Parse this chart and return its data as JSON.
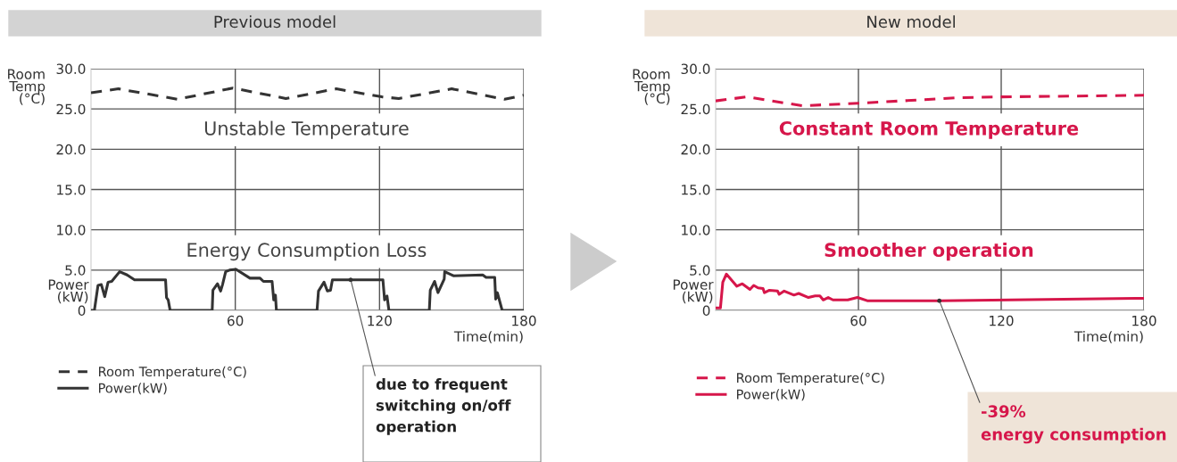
{
  "chart_data": [
    {
      "type": "line",
      "title": "Previous model",
      "ylabel": "Room\nTemp\n(°C)",
      "xlabel": "Time(min)",
      "xlim": [
        0,
        180
      ],
      "xticks": [
        60,
        120,
        180
      ],
      "ylim": [
        0,
        30
      ],
      "yticks": [
        0,
        {
          "value": 5,
          "label": "5.0"
        },
        {
          "value": 10,
          "label": "10.0"
        },
        {
          "value": 15,
          "label": "15.0"
        },
        {
          "value": 20,
          "label": "20.0"
        },
        {
          "value": 25,
          "label": "25.0"
        },
        {
          "value": 30,
          "label": "30.0"
        }
      ],
      "grid": true,
      "legend": "bottom left",
      "marker": "none",
      "series": [
        {
          "name": "Room Temperature(°C)",
          "color": "#333333",
          "line_style": "dashed",
          "x": [
            0,
            11.4,
            36,
            59,
            81,
            102,
            121,
            128,
            150,
            172,
            180
          ],
          "values": [
            27.0,
            27.5,
            26.2,
            27.6,
            26.3,
            27.5,
            26.5,
            26.3,
            27.5,
            26.2,
            26.7
          ]
        },
        {
          "name": "Power(kW)",
          "color": "#333333",
          "line_style": "solid",
          "x": [
            0,
            1.4,
            2.9,
            4.3,
            5.7,
            7.1,
            8.6,
            11.9,
            15,
            18.1,
            31,
            31.4,
            32.1,
            32.9,
            50.4,
            50.7,
            52.6,
            53.9,
            54.7,
            56,
            57.6,
            60.3,
            66.1,
            70.3,
            71.7,
            75.3,
            76,
            76.7,
            77.1,
            94,
            94.6,
            96.9,
            98.3,
            99.6,
            100.4,
            121.4,
            122.1,
            123.1,
            123.9,
            140.7,
            141.1,
            142.9,
            144.3,
            146.9,
            147.1,
            150.7,
            162.9,
            164.3,
            167.9,
            168.3,
            169,
            171,
            180
          ],
          "values": [
            0,
            0,
            3.1,
            3.2,
            1.7,
            3.5,
            3.6,
            4.8,
            4.4,
            3.8,
            3.8,
            1.6,
            1.3,
            0,
            0,
            2.5,
            3.3,
            2.4,
            3.2,
            4.8,
            5.0,
            5.1,
            4.0,
            4.0,
            3.6,
            3.6,
            1.3,
            1.9,
            0,
            0,
            2.4,
            3.5,
            2.4,
            2.5,
            3.8,
            3.8,
            1.3,
            1.8,
            0,
            0,
            2.5,
            3.6,
            2.2,
            3.9,
            4.8,
            4.3,
            4.4,
            4.1,
            4.1,
            1.4,
            2.2,
            0,
            0
          ]
        }
      ],
      "annotations": [
        "Unstable Temperature",
        "Energy Consumption Loss",
        {
          "text": "due to frequent\nswitching on/off\noperation",
          "x": 108,
          "y": 3.8
        },
        "Power\n(kW)"
      ]
    },
    {
      "type": "line",
      "title": "New model",
      "ylabel": "Room\nTemp\n(°C)",
      "xlabel": "Time(min)",
      "xlim": [
        0,
        180
      ],
      "xticks": [
        60,
        120,
        180
      ],
      "ylim": [
        0,
        30
      ],
      "yticks": [
        0,
        {
          "value": 5,
          "label": "5.0"
        },
        {
          "value": 10,
          "label": "10.0"
        },
        {
          "value": 15,
          "label": "15.0"
        },
        {
          "value": 20,
          "label": "20.0"
        },
        {
          "value": 25,
          "label": "25.0"
        },
        {
          "value": 30,
          "label": "30.0"
        }
      ],
      "grid": true,
      "legend": "bottom left",
      "marker": "none",
      "series": [
        {
          "name": "Room Temperature(°C)",
          "color": "#d6164a",
          "line_style": "dashed",
          "x": [
            0,
            13,
            36.3,
            60,
            102,
            120.5,
            180
          ],
          "values": [
            26.0,
            26.5,
            25.4,
            25.7,
            26.4,
            26.5,
            26.7
          ]
        },
        {
          "name": "Power(kW)",
          "color": "#d6164a",
          "line_style": "solid",
          "x": [
            0,
            2,
            3,
            4.5,
            8.9,
            11.2,
            14.4,
            16,
            17.8,
            19.9,
            20.5,
            22.6,
            26,
            26.7,
            28.8,
            32.9,
            34.9,
            39,
            41.8,
            43.8,
            45.2,
            47.3,
            49.3,
            55.5,
            59.6,
            63.7,
            93.8,
            180
          ],
          "values": [
            0.3,
            0.3,
            3.5,
            4.5,
            3.0,
            3.3,
            2.6,
            3.1,
            2.8,
            2.7,
            2.2,
            2.5,
            2.4,
            2.0,
            2.4,
            1.9,
            2.1,
            1.6,
            1.8,
            1.8,
            1.3,
            1.6,
            1.3,
            1.3,
            1.6,
            1.2,
            1.2,
            1.5
          ]
        }
      ],
      "annotations": [
        "Constant Room Temperature",
        "Smoother operation",
        {
          "text": "-39%\nenergy consumption",
          "x": 94,
          "y": 1.2
        },
        "Power\n(kW)"
      ]
    }
  ]
}
